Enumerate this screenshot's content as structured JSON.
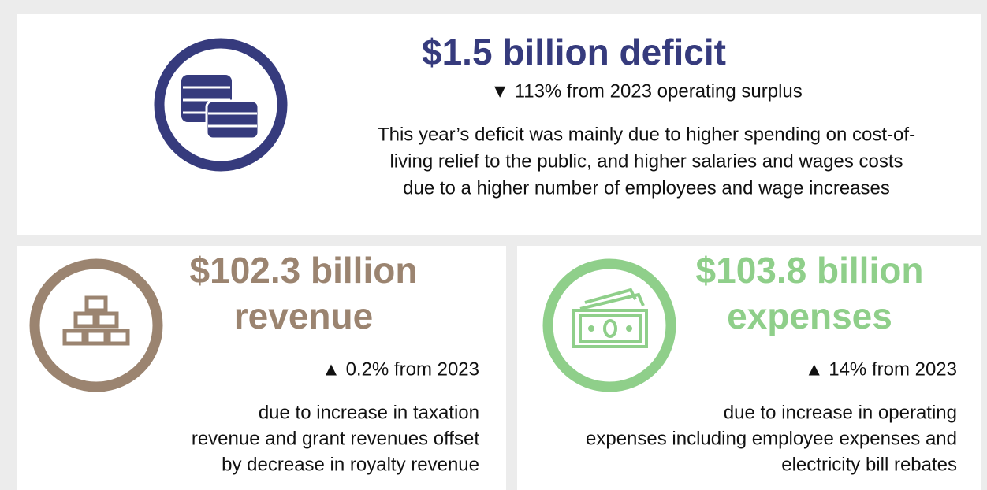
{
  "deficit": {
    "headline": "$1.5 billion deficit",
    "change": "▼ 113% from 2023 operating surplus",
    "description": [
      "This year’s deficit was mainly due to higher spending on cost-of-",
      "living relief to the public, and higher salaries and wages costs",
      "due to a higher number of employees and wage increases"
    ]
  },
  "revenue": {
    "headline": [
      "$102.3 billion",
      "revenue"
    ],
    "change": "▲ 0.2% from 2023",
    "description": [
      "due to increase in taxation",
      "revenue and grant revenues offset",
      "by decrease in royalty revenue"
    ]
  },
  "expenses": {
    "headline": [
      "$103.8 billion",
      "expenses"
    ],
    "change": "▲ 14% from 2023",
    "description": [
      "due to increase in operating",
      "expenses including employee expenses and",
      "electricity bill rebates"
    ]
  }
}
